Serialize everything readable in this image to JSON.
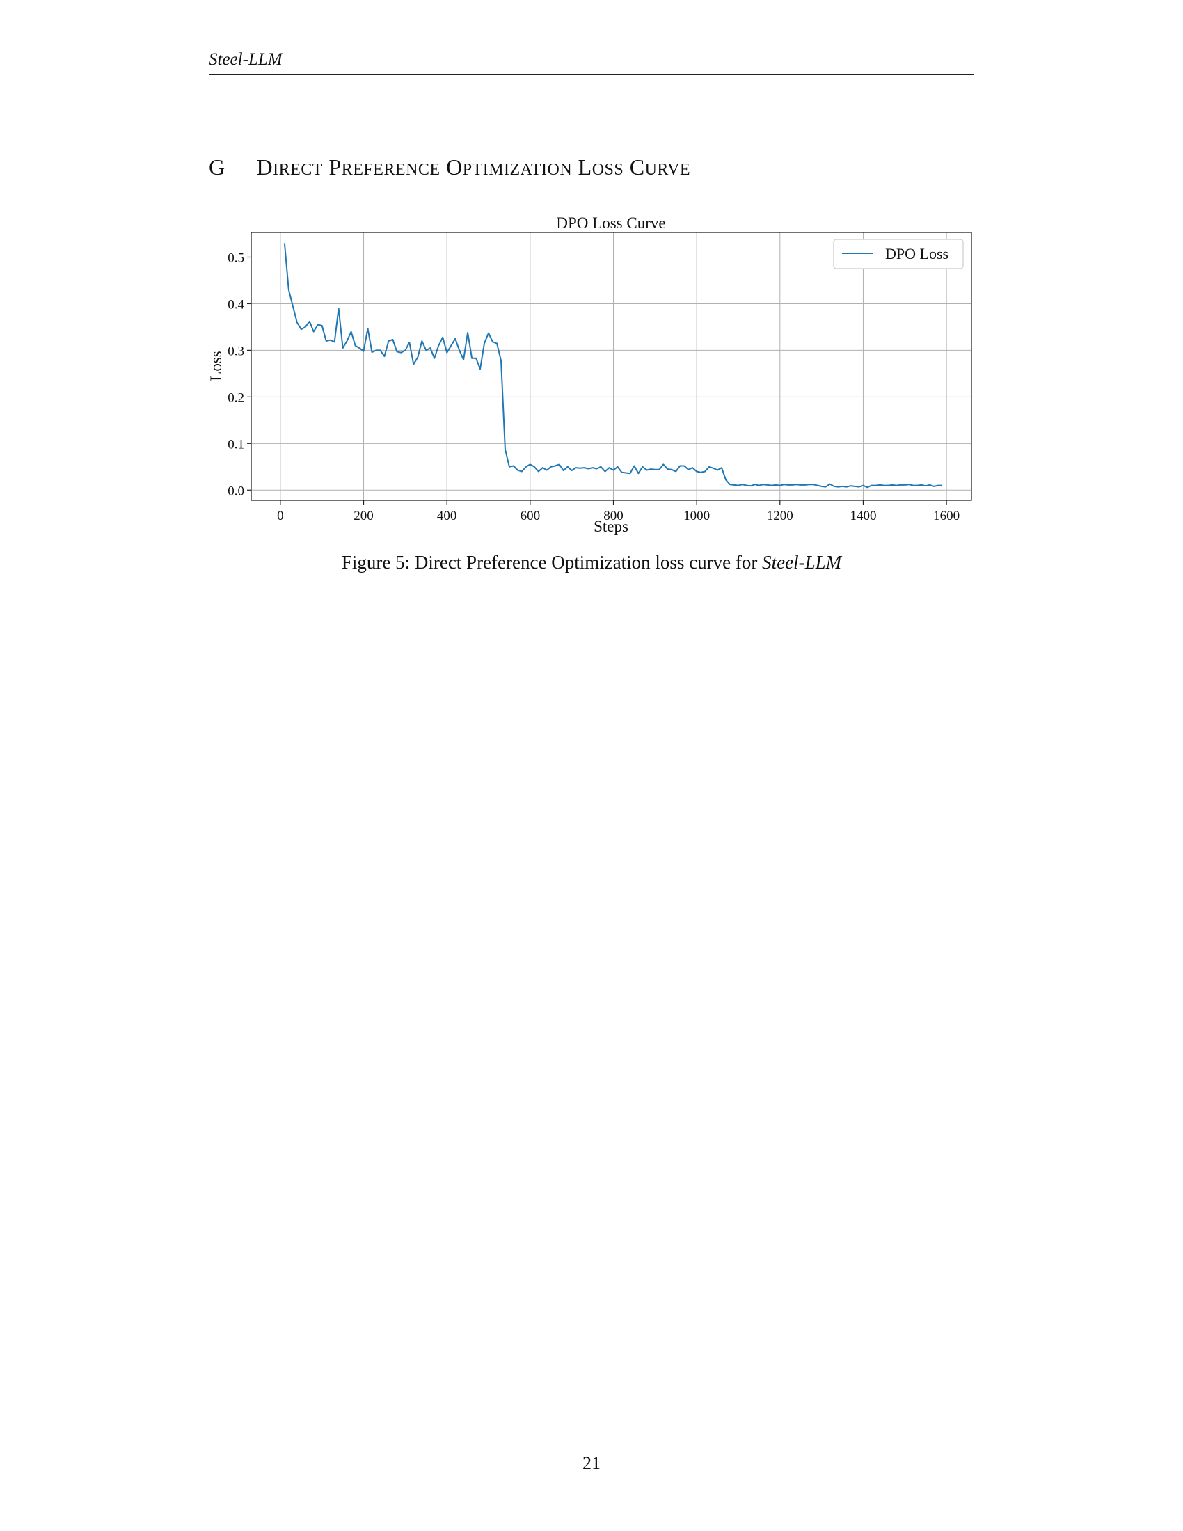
{
  "header": {
    "running_title": "Steel-LLM"
  },
  "section": {
    "letter": "G",
    "title": "Direct Preference Optimization Loss Curve"
  },
  "figure": {
    "caption_prefix": "Figure 5: Direct Preference Optimization loss curve for ",
    "caption_model": "Steel-LLM"
  },
  "page_number": "21",
  "chart_data": {
    "type": "line",
    "title": "DPO Loss Curve",
    "xlabel": "Steps",
    "ylabel": "Loss",
    "xlim": [
      -70,
      1660
    ],
    "ylim": [
      -0.022,
      0.553
    ],
    "xticks": [
      0,
      200,
      400,
      600,
      800,
      1000,
      1200,
      1400,
      1600
    ],
    "yticks": [
      0.0,
      0.1,
      0.2,
      0.3,
      0.4,
      0.5
    ],
    "ytick_labels": [
      "0.0",
      "0.1",
      "0.2",
      "0.3",
      "0.4",
      "0.5"
    ],
    "grid": true,
    "legend_position": "top-right",
    "line_color": "#1f77b4",
    "series": [
      {
        "name": "DPO Loss",
        "x": [
          10,
          20,
          30,
          40,
          50,
          60,
          70,
          80,
          90,
          100,
          110,
          120,
          130,
          140,
          150,
          160,
          170,
          180,
          190,
          200,
          210,
          220,
          230,
          240,
          250,
          260,
          270,
          280,
          290,
          300,
          310,
          320,
          330,
          340,
          350,
          360,
          370,
          380,
          390,
          400,
          410,
          420,
          430,
          440,
          450,
          460,
          470,
          480,
          490,
          500,
          510,
          520,
          530,
          540,
          550,
          560,
          570,
          580,
          590,
          600,
          610,
          620,
          630,
          640,
          650,
          660,
          670,
          680,
          690,
          700,
          710,
          720,
          730,
          740,
          750,
          760,
          770,
          780,
          790,
          800,
          810,
          820,
          830,
          840,
          850,
          860,
          870,
          880,
          890,
          900,
          910,
          920,
          930,
          940,
          950,
          960,
          970,
          980,
          990,
          1000,
          1010,
          1020,
          1030,
          1040,
          1050,
          1060,
          1070,
          1080,
          1090,
          1100,
          1110,
          1120,
          1130,
          1140,
          1150,
          1160,
          1170,
          1180,
          1190,
          1200,
          1210,
          1220,
          1230,
          1240,
          1250,
          1260,
          1270,
          1280,
          1290,
          1300,
          1310,
          1320,
          1330,
          1340,
          1350,
          1360,
          1370,
          1380,
          1390,
          1400,
          1410,
          1420,
          1430,
          1440,
          1450,
          1460,
          1470,
          1480,
          1490,
          1500,
          1510,
          1520,
          1530,
          1540,
          1550,
          1560,
          1570,
          1580,
          1590
        ],
        "y": [
          0.53,
          0.43,
          0.395,
          0.36,
          0.345,
          0.35,
          0.362,
          0.34,
          0.355,
          0.353,
          0.32,
          0.322,
          0.318,
          0.39,
          0.305,
          0.32,
          0.34,
          0.31,
          0.305,
          0.298,
          0.347,
          0.296,
          0.3,
          0.3,
          0.287,
          0.32,
          0.323,
          0.297,
          0.295,
          0.3,
          0.317,
          0.27,
          0.285,
          0.32,
          0.3,
          0.305,
          0.283,
          0.31,
          0.328,
          0.295,
          0.31,
          0.325,
          0.3,
          0.28,
          0.338,
          0.283,
          0.283,
          0.26,
          0.315,
          0.337,
          0.318,
          0.315,
          0.278,
          0.088,
          0.05,
          0.052,
          0.043,
          0.04,
          0.05,
          0.055,
          0.05,
          0.04,
          0.048,
          0.043,
          0.05,
          0.052,
          0.055,
          0.042,
          0.05,
          0.042,
          0.048,
          0.047,
          0.048,
          0.046,
          0.048,
          0.046,
          0.05,
          0.04,
          0.048,
          0.043,
          0.05,
          0.038,
          0.037,
          0.036,
          0.052,
          0.036,
          0.05,
          0.043,
          0.045,
          0.044,
          0.044,
          0.055,
          0.045,
          0.044,
          0.04,
          0.052,
          0.052,
          0.044,
          0.048,
          0.04,
          0.038,
          0.04,
          0.05,
          0.047,
          0.043,
          0.048,
          0.022,
          0.012,
          0.011,
          0.01,
          0.012,
          0.01,
          0.009,
          0.012,
          0.01,
          0.012,
          0.011,
          0.01,
          0.011,
          0.01,
          0.012,
          0.011,
          0.011,
          0.012,
          0.011,
          0.011,
          0.012,
          0.012,
          0.01,
          0.008,
          0.007,
          0.013,
          0.008,
          0.007,
          0.008,
          0.007,
          0.009,
          0.008,
          0.007,
          0.01,
          0.006,
          0.01,
          0.01,
          0.011,
          0.01,
          0.01,
          0.011,
          0.01,
          0.011,
          0.011,
          0.012,
          0.01,
          0.01,
          0.011,
          0.009,
          0.011,
          0.008,
          0.01,
          0.01
        ]
      }
    ]
  }
}
